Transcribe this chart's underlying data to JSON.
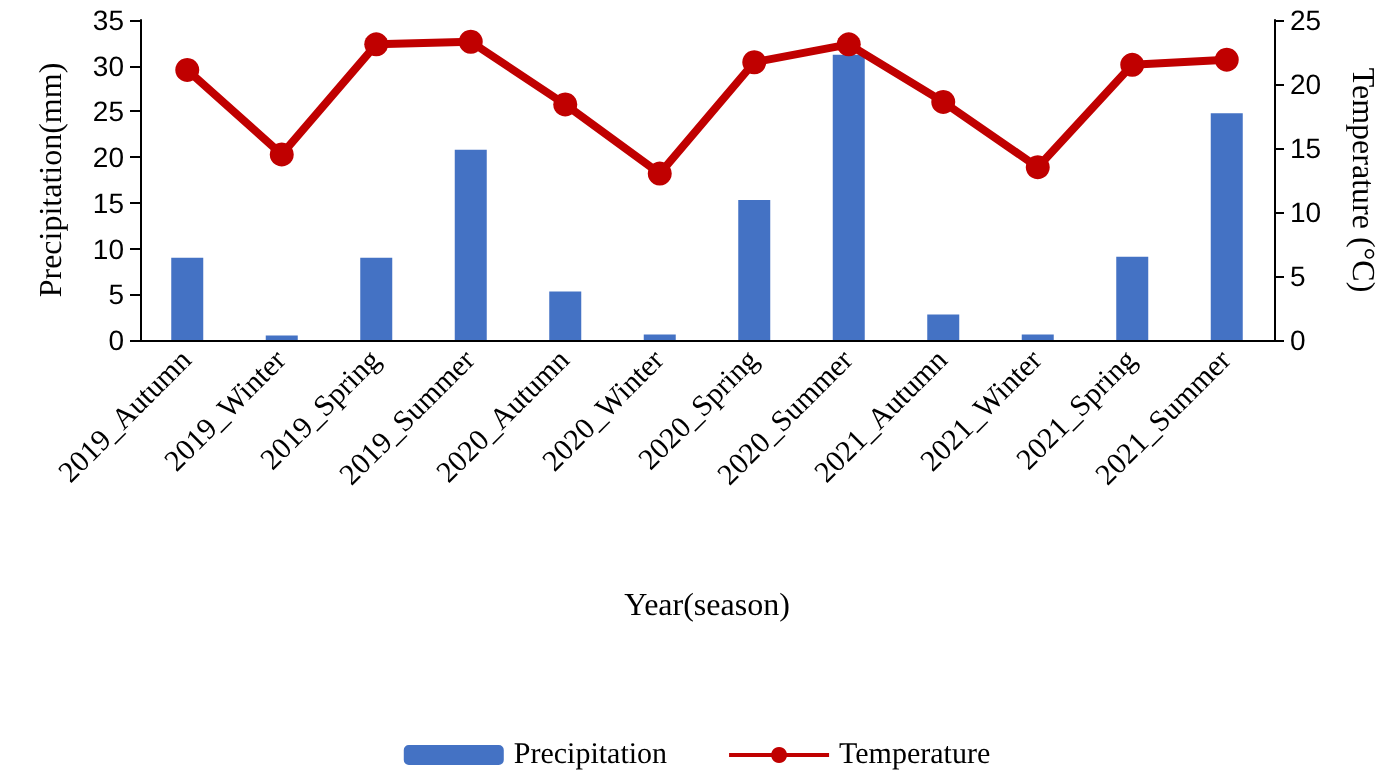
{
  "chart_data": {
    "type": "bar",
    "xlabel": "Year(season)",
    "ylabel": "Precipitation(mm)",
    "y2label": "Temperature (°C)",
    "categories": [
      "2019_Autumn",
      "2019_Winter",
      "2019_Spring",
      "2019_Summer",
      "2020_Autumn",
      "2020_Winter",
      "2020_Spring",
      "2020_Summer",
      "2021_Autumn",
      "2021_Winter",
      "2021_Spring",
      "2021_Summer"
    ],
    "series": [
      {
        "name": "Precipitation",
        "color": "#4472c4",
        "values": [
          9,
          0.5,
          9,
          20.8,
          5.3,
          0.6,
          15.3,
          31.2,
          2.8,
          0.6,
          9.1,
          24.8
        ]
      },
      {
        "name": "Temperature",
        "type": "line",
        "axis": "y2",
        "color": "#c00000",
        "marker": "circle",
        "values": [
          21.1,
          14.5,
          23.1,
          23.3,
          18.4,
          13.0,
          21.7,
          23.1,
          18.6,
          13.5,
          21.5,
          21.9
        ]
      }
    ],
    "ylim": [
      0,
      35
    ],
    "yticks": [
      0,
      5,
      10,
      15,
      20,
      25,
      30,
      35
    ],
    "y2lim": [
      0,
      25
    ],
    "y2ticks": [
      0,
      5,
      10,
      15,
      20,
      25
    ],
    "grid": false,
    "legend": "bottom"
  }
}
